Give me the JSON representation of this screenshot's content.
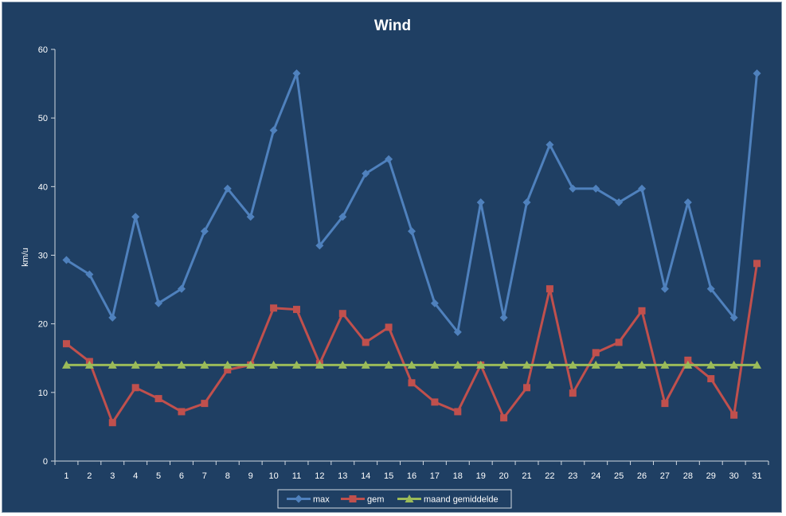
{
  "chart_data": {
    "type": "line",
    "title": "Wind",
    "xlabel": "",
    "ylabel": "km/u",
    "ylim": [
      0,
      60
    ],
    "yticks": [
      0,
      10,
      20,
      30,
      40,
      50,
      60
    ],
    "grid": false,
    "legend_position": "bottom",
    "categories": [
      "1",
      "2",
      "3",
      "4",
      "5",
      "6",
      "7",
      "8",
      "9",
      "10",
      "11",
      "12",
      "13",
      "14",
      "15",
      "16",
      "17",
      "18",
      "19",
      "20",
      "21",
      "22",
      "23",
      "24",
      "25",
      "26",
      "27",
      "28",
      "29",
      "30",
      "31"
    ],
    "series": [
      {
        "name": "max",
        "color": "#4f81bd",
        "marker": "diamond",
        "values": [
          29.3,
          27.2,
          20.9,
          35.6,
          23.0,
          25.1,
          33.5,
          39.7,
          35.6,
          48.2,
          56.5,
          31.4,
          35.6,
          41.9,
          44.0,
          33.5,
          23.0,
          18.8,
          37.7,
          20.9,
          37.7,
          46.1,
          39.7,
          39.7,
          37.7,
          39.7,
          25.1,
          37.7,
          25.1,
          20.9,
          56.5
        ]
      },
      {
        "name": "gem",
        "color": "#c0504d",
        "marker": "square",
        "values": [
          17.1,
          14.5,
          5.6,
          10.7,
          9.1,
          7.2,
          8.4,
          13.3,
          14.0,
          22.3,
          22.1,
          14.2,
          21.5,
          17.3,
          19.5,
          11.4,
          8.6,
          7.2,
          14.0,
          6.3,
          10.7,
          25.1,
          9.9,
          15.8,
          17.3,
          21.9,
          8.4,
          14.7,
          12.0,
          6.7,
          28.8
        ]
      },
      {
        "name": "maand gemiddelde",
        "color": "#9bbb59",
        "marker": "triangle",
        "values": [
          14.0,
          14.0,
          14.0,
          14.0,
          14.0,
          14.0,
          14.0,
          14.0,
          14.0,
          14.0,
          14.0,
          14.0,
          14.0,
          14.0,
          14.0,
          14.0,
          14.0,
          14.0,
          14.0,
          14.0,
          14.0,
          14.0,
          14.0,
          14.0,
          14.0,
          14.0,
          14.0,
          14.0,
          14.0,
          14.0,
          14.0
        ]
      }
    ]
  }
}
